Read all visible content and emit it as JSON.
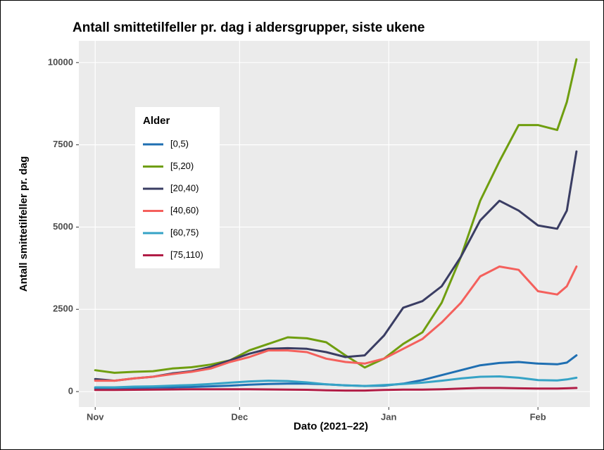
{
  "chart_data": {
    "type": "line",
    "title": "Antall smittetilfeller pr. dag i aldersgrupper, siste ukene",
    "x_label": "Dato (2021–22)",
    "y_label": "Antall smittetilfeller pr. dag",
    "legend_title": "Alder",
    "legend_position": "top-left",
    "grid": true,
    "x": [
      0,
      4,
      8,
      12,
      16,
      20,
      24,
      28,
      32,
      36,
      40,
      44,
      48,
      52,
      56,
      60,
      64,
      68,
      72,
      76,
      80,
      84,
      88,
      92,
      96,
      98,
      100
    ],
    "xlim": [
      -3.4,
      102.8
    ],
    "xticks": [
      {
        "value": 0,
        "label": "Nov"
      },
      {
        "value": 30,
        "label": "Dec"
      },
      {
        "value": 61,
        "label": "Jan"
      },
      {
        "value": 92,
        "label": "Feb"
      }
    ],
    "ylim": [
      -470,
      10660
    ],
    "yticks": [
      0,
      2500,
      5000,
      7500,
      10000
    ],
    "series": [
      {
        "name": "[0,5)",
        "color": "#1f6fb2",
        "values": [
          100,
          100,
          110,
          120,
          130,
          140,
          160,
          180,
          210,
          230,
          240,
          240,
          220,
          190,
          170,
          180,
          240,
          350,
          500,
          650,
          800,
          870,
          900,
          850,
          830,
          880,
          1100
        ]
      },
      {
        "name": "[5,20)",
        "color": "#6f9e0f",
        "values": [
          650,
          570,
          600,
          620,
          700,
          740,
          820,
          950,
          1250,
          1450,
          1650,
          1620,
          1500,
          1100,
          730,
          1000,
          1450,
          1800,
          2700,
          4100,
          5800,
          7000,
          8100,
          8100,
          7950,
          8800,
          10100
        ]
      },
      {
        "name": "[20,40)",
        "color": "#3a3d63",
        "values": [
          380,
          330,
          400,
          450,
          550,
          620,
          750,
          950,
          1150,
          1300,
          1320,
          1300,
          1200,
          1050,
          1100,
          1700,
          2550,
          2750,
          3200,
          4100,
          5200,
          5800,
          5500,
          5050,
          4950,
          5500,
          7300
        ]
      },
      {
        "name": "[40,60)",
        "color": "#f4605c",
        "values": [
          330,
          330,
          400,
          450,
          530,
          600,
          700,
          900,
          1050,
          1250,
          1250,
          1200,
          1000,
          900,
          850,
          1000,
          1300,
          1600,
          2100,
          2700,
          3500,
          3800,
          3700,
          3050,
          2950,
          3200,
          3800
        ]
      },
      {
        "name": "[60,75)",
        "color": "#36a3c6",
        "values": [
          130,
          130,
          150,
          160,
          180,
          200,
          230,
          270,
          310,
          330,
          320,
          280,
          220,
          190,
          170,
          200,
          230,
          270,
          330,
          400,
          450,
          460,
          420,
          350,
          340,
          370,
          420
        ]
      },
      {
        "name": "[75,110)",
        "color": "#b11d46",
        "values": [
          50,
          50,
          55,
          60,
          65,
          70,
          70,
          70,
          70,
          65,
          60,
          55,
          40,
          30,
          30,
          50,
          60,
          60,
          70,
          90,
          110,
          110,
          100,
          90,
          90,
          100,
          110
        ]
      }
    ]
  }
}
